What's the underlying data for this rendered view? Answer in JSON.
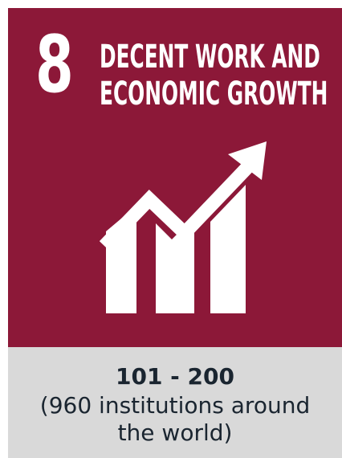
{
  "goal": {
    "number": "8",
    "title_line1": "DECENT WORK AND",
    "title_line2": "ECONOMIC GROWTH",
    "icon": "rising-bar-chart-arrow-icon",
    "background_color": "#8c1838"
  },
  "ranking": {
    "band": "101 - 200",
    "institutions_line1": "(960 institutions around",
    "institutions_line2": "the world)",
    "footer_color": "#d9d9d9"
  }
}
